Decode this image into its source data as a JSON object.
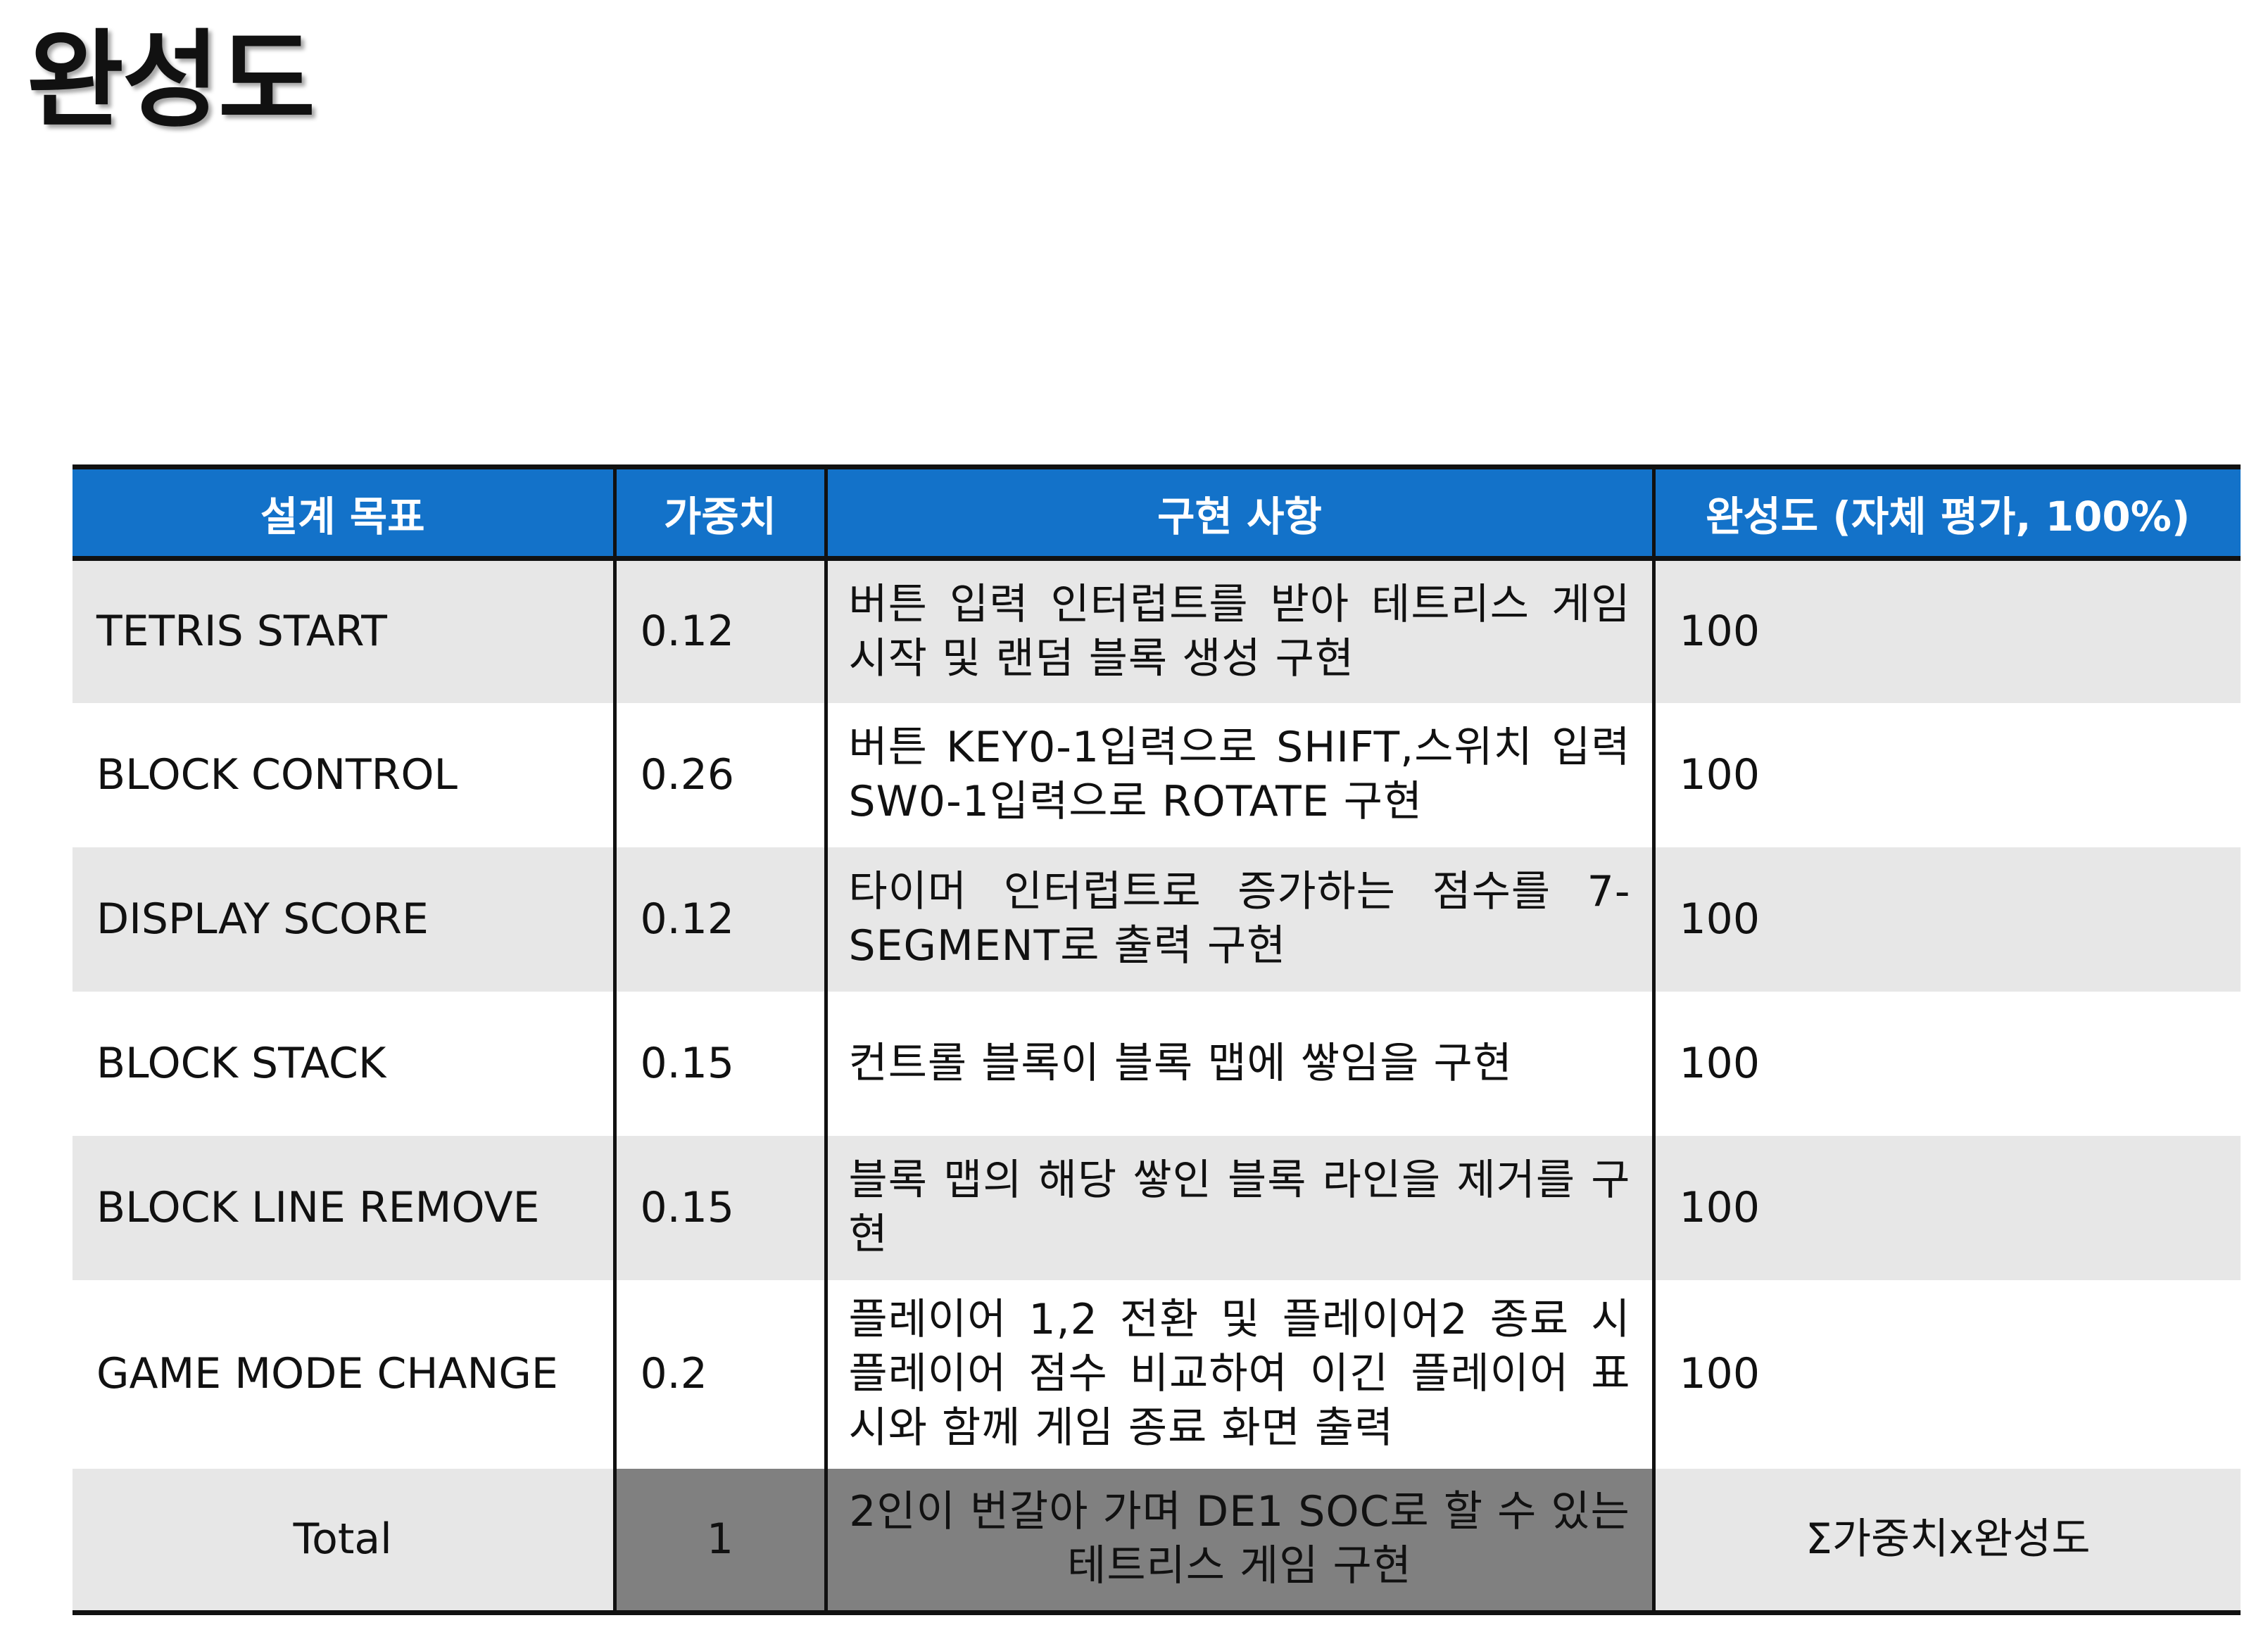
{
  "page": {
    "title": "완성도"
  },
  "table": {
    "headers": [
      "설계 목표",
      "가중치",
      "구현 사항",
      "완성도 (자체 평가, 100%)"
    ],
    "rows": [
      {
        "goal": "TETRIS START",
        "weight": "0.12",
        "description": "버튼 입력 인터럽트를 받아 테트리스 게임 시작 및 랜덤 블록 생성 구현",
        "completion": "100"
      },
      {
        "goal": "BLOCK CONTROL",
        "weight": "0.26",
        "description": "버튼 KEY0-1입력으로 SHIFT,스위치 입력 SW0-1입력으로 ROTATE 구현",
        "completion": "100"
      },
      {
        "goal": "DISPLAY SCORE",
        "weight": "0.12",
        "description": "타이머 인터럽트로 증가하는 점수를 7-SEGMENT로 출력 구현",
        "completion": "100"
      },
      {
        "goal": "BLOCK STACK",
        "weight": "0.15",
        "description": "컨트롤 블록이 블록 맵에 쌓임을 구현",
        "completion": "100"
      },
      {
        "goal": "BLOCK LINE REMOVE",
        "weight": "0.15",
        "description": "블록 맵의 해당 쌓인 블록 라인을 제거를 구현",
        "completion": "100"
      },
      {
        "goal": "GAME MODE CHANGE",
        "weight": "0.2",
        "description": "플레이어 1,2 전환 및 플레이어2 종료 시 플레이어 점수 비교하여 이긴 플레이어 표시와 함께 게임 종료 화면 출력",
        "completion": "100"
      }
    ],
    "total": {
      "label": "Total",
      "weight": "1",
      "description": "2인이 번갈아 가며 DE1 SOC로 할 수 있는 테트리스 게임 구현",
      "completion": "Σ가중치x완성도"
    }
  },
  "colors": {
    "header_bg": "#1372c9",
    "row_shade": "#e7e7e7",
    "total_dark": "#808080"
  }
}
